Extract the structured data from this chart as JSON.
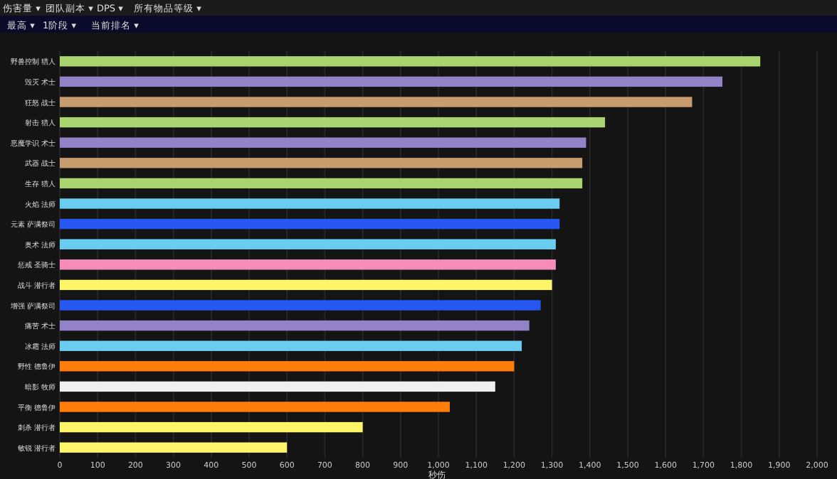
{
  "chart_data": {
    "type": "bar",
    "orientation": "horizontal",
    "annotations": [
      "伤害量 ▾",
      "团队副本 ▾",
      "DPS ▾",
      "所有物品等级 ▾",
      "最高 ▾",
      "1阶段 ▾",
      "当前排名 ▾"
    ],
    "categories": [
      "野兽控制 猎人",
      "毁灭 术士",
      "狂怒 战士",
      "射击 猎人",
      "恶魔学识 术士",
      "武器 战士",
      "生存 猎人",
      "火焰 法师",
      "元素 萨满祭司",
      "奥术 法师",
      "惩戒 圣骑士",
      "战斗 潜行者",
      "增强 萨满祭司",
      "痛苦 术士",
      "冰霜 法师",
      "野性 德鲁伊",
      "暗影 牧师",
      "平衡 德鲁伊",
      "刺杀 潜行者",
      "敏锐 潜行者"
    ],
    "values": [
      1850,
      1750,
      1670,
      1440,
      1390,
      1380,
      1380,
      1320,
      1320,
      1310,
      1310,
      1300,
      1270,
      1240,
      1220,
      1200,
      1150,
      1030,
      800,
      600
    ],
    "colors": [
      "#a9d46f",
      "#9482c9",
      "#c79c6e",
      "#a9d46f",
      "#9482c9",
      "#c79c6e",
      "#a9d46f",
      "#69ccf0",
      "#2657f0",
      "#69ccf0",
      "#f58cba",
      "#fff569",
      "#2657f0",
      "#9482c9",
      "#69ccf0",
      "#ff7d0a",
      "#f0f0f0",
      "#ff7d0a",
      "#fff569",
      "#fff569"
    ],
    "xlabel": "秒伤",
    "xlim": [
      0,
      2000
    ],
    "xticks": [
      0,
      100,
      200,
      300,
      400,
      500,
      600,
      700,
      800,
      900,
      {
        "value": 1000,
        "label": "1,000"
      },
      {
        "value": 1100,
        "label": "1,100"
      },
      {
        "value": 1200,
        "label": "1,200"
      },
      {
        "value": 1300,
        "label": "1,300"
      },
      {
        "value": 1400,
        "label": "1,400"
      },
      {
        "value": 1500,
        "label": "1,500"
      },
      {
        "value": 1600,
        "label": "1,600"
      },
      {
        "value": 1700,
        "label": "1,700"
      },
      {
        "value": 1800,
        "label": "1,800"
      },
      {
        "value": 1900,
        "label": "1,900"
      },
      {
        "value": 2000,
        "label": "2,000"
      }
    ],
    "grid": "x"
  }
}
